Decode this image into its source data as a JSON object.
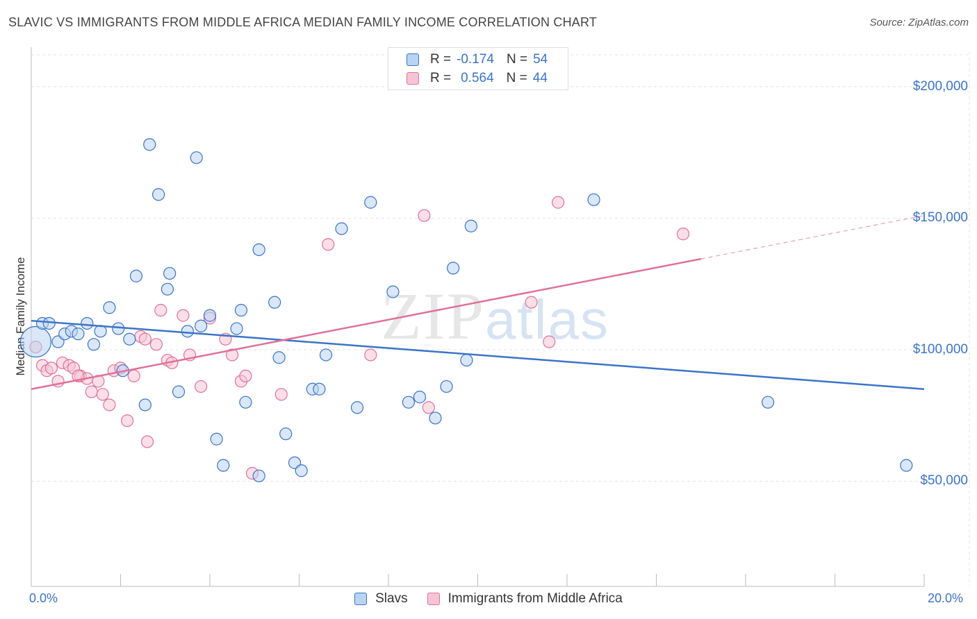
{
  "title": "SLAVIC VS IMMIGRANTS FROM MIDDLE AFRICA MEDIAN FAMILY INCOME CORRELATION CHART",
  "source": "Source: ZipAtlas.com",
  "watermark": {
    "zip": "ZIP",
    "atlas": "atlas"
  },
  "colors": {
    "slavs": "#3a73c9",
    "slavs_fill": "#b9d3f3",
    "immigrants": "#e0709a",
    "immigrants_fill": "#f7c4d4",
    "grid": "#e3e3e3",
    "axis_label": "#3a73c9"
  },
  "legend_top": {
    "rows": [
      {
        "r_label": "R =",
        "r_value": "-0.174",
        "n_label": "N =",
        "n_value": "54"
      },
      {
        "r_label": "R =",
        "r_value": "0.564",
        "n_label": "N =",
        "n_value": "44"
      }
    ]
  },
  "legend_bottom": [
    "Slavs",
    "Immigrants from Middle Africa"
  ],
  "chart_data": {
    "type": "scatter",
    "title": "SLAVIC VS IMMIGRANTS FROM MIDDLE AFRICA MEDIAN FAMILY INCOME CORRELATION CHART",
    "xlabel": "",
    "ylabel": "Median Family Income",
    "xlim": [
      0,
      20
    ],
    "ylim": [
      10000,
      215000
    ],
    "x_tick_labels": [
      "0.0%",
      "20.0%"
    ],
    "y_ticks": [
      50000,
      100000,
      150000,
      200000
    ],
    "y_tick_labels": [
      "$50,000",
      "$100,000",
      "$150,000",
      "$200,000"
    ],
    "grid": true,
    "legend_position": "bottom",
    "series": [
      {
        "name": "Slavs",
        "r": -0.174,
        "n": 54,
        "trend": {
          "x": [
            0,
            20
          ],
          "y": [
            111000,
            85000
          ]
        },
        "points": [
          {
            "x": 0.1,
            "y": 103000,
            "big": true
          },
          {
            "x": 0.25,
            "y": 110000
          },
          {
            "x": 0.4,
            "y": 110000
          },
          {
            "x": 0.6,
            "y": 103000
          },
          {
            "x": 0.75,
            "y": 106000
          },
          {
            "x": 0.9,
            "y": 107000
          },
          {
            "x": 1.05,
            "y": 106000
          },
          {
            "x": 1.25,
            "y": 110000
          },
          {
            "x": 1.4,
            "y": 102000
          },
          {
            "x": 1.55,
            "y": 107000
          },
          {
            "x": 1.75,
            "y": 116000
          },
          {
            "x": 1.95,
            "y": 108000
          },
          {
            "x": 2.05,
            "y": 92000
          },
          {
            "x": 2.2,
            "y": 104000
          },
          {
            "x": 2.35,
            "y": 128000
          },
          {
            "x": 2.55,
            "y": 79000
          },
          {
            "x": 2.65,
            "y": 178000
          },
          {
            "x": 2.85,
            "y": 159000
          },
          {
            "x": 3.05,
            "y": 123000
          },
          {
            "x": 3.1,
            "y": 129000
          },
          {
            "x": 3.3,
            "y": 84000
          },
          {
            "x": 3.5,
            "y": 107000
          },
          {
            "x": 3.7,
            "y": 173000
          },
          {
            "x": 3.8,
            "y": 109000
          },
          {
            "x": 4.0,
            "y": 113000
          },
          {
            "x": 4.15,
            "y": 66000
          },
          {
            "x": 4.3,
            "y": 56000
          },
          {
            "x": 4.6,
            "y": 108000
          },
          {
            "x": 4.7,
            "y": 115000
          },
          {
            "x": 4.8,
            "y": 80000
          },
          {
            "x": 5.1,
            "y": 138000
          },
          {
            "x": 5.1,
            "y": 52000
          },
          {
            "x": 5.45,
            "y": 118000
          },
          {
            "x": 5.55,
            "y": 97000
          },
          {
            "x": 5.7,
            "y": 68000
          },
          {
            "x": 5.9,
            "y": 57000
          },
          {
            "x": 6.05,
            "y": 54000
          },
          {
            "x": 6.3,
            "y": 85000
          },
          {
            "x": 6.45,
            "y": 85000
          },
          {
            "x": 6.6,
            "y": 98000
          },
          {
            "x": 6.95,
            "y": 146000
          },
          {
            "x": 7.3,
            "y": 78000
          },
          {
            "x": 7.6,
            "y": 156000
          },
          {
            "x": 8.1,
            "y": 122000
          },
          {
            "x": 8.45,
            "y": 80000
          },
          {
            "x": 8.7,
            "y": 82000
          },
          {
            "x": 9.05,
            "y": 74000
          },
          {
            "x": 9.3,
            "y": 86000
          },
          {
            "x": 9.45,
            "y": 131000
          },
          {
            "x": 9.75,
            "y": 96000
          },
          {
            "x": 9.85,
            "y": 147000
          },
          {
            "x": 12.6,
            "y": 157000
          },
          {
            "x": 16.5,
            "y": 80000
          },
          {
            "x": 19.6,
            "y": 56000
          }
        ]
      },
      {
        "name": "Immigrants from Middle Africa",
        "r": 0.564,
        "n": 44,
        "trend": {
          "x": [
            0,
            15
          ],
          "y": [
            85000,
            134500
          ],
          "x_dash_end": 20,
          "y_dash_end": 151000
        },
        "points": [
          {
            "x": 0.1,
            "y": 101000
          },
          {
            "x": 0.25,
            "y": 94000
          },
          {
            "x": 0.35,
            "y": 92000
          },
          {
            "x": 0.45,
            "y": 93000
          },
          {
            "x": 0.6,
            "y": 88000
          },
          {
            "x": 0.7,
            "y": 95000
          },
          {
            "x": 0.85,
            "y": 94000
          },
          {
            "x": 0.95,
            "y": 93000
          },
          {
            "x": 1.1,
            "y": 90000
          },
          {
            "x": 1.25,
            "y": 89000
          },
          {
            "x": 1.35,
            "y": 84000
          },
          {
            "x": 1.5,
            "y": 88000
          },
          {
            "x": 1.6,
            "y": 83000
          },
          {
            "x": 1.75,
            "y": 79000
          },
          {
            "x": 1.85,
            "y": 92000
          },
          {
            "x": 2.0,
            "y": 93000
          },
          {
            "x": 2.15,
            "y": 73000
          },
          {
            "x": 2.3,
            "y": 90000
          },
          {
            "x": 2.45,
            "y": 105000
          },
          {
            "x": 2.55,
            "y": 104000
          },
          {
            "x": 2.6,
            "y": 65000
          },
          {
            "x": 2.8,
            "y": 102000
          },
          {
            "x": 2.9,
            "y": 115000
          },
          {
            "x": 3.05,
            "y": 96000
          },
          {
            "x": 3.15,
            "y": 95000
          },
          {
            "x": 3.4,
            "y": 113000
          },
          {
            "x": 3.55,
            "y": 98000
          },
          {
            "x": 3.8,
            "y": 86000
          },
          {
            "x": 4.0,
            "y": 112000
          },
          {
            "x": 4.35,
            "y": 104000
          },
          {
            "x": 4.5,
            "y": 98000
          },
          {
            "x": 4.7,
            "y": 88000
          },
          {
            "x": 4.8,
            "y": 90000
          },
          {
            "x": 4.95,
            "y": 53000
          },
          {
            "x": 5.6,
            "y": 83000
          },
          {
            "x": 6.65,
            "y": 140000
          },
          {
            "x": 7.6,
            "y": 98000
          },
          {
            "x": 8.8,
            "y": 151000
          },
          {
            "x": 8.9,
            "y": 78000
          },
          {
            "x": 11.2,
            "y": 118000
          },
          {
            "x": 11.6,
            "y": 103000
          },
          {
            "x": 11.8,
            "y": 156000
          },
          {
            "x": 14.6,
            "y": 144000
          },
          {
            "x": 1.05,
            "y": 90000
          }
        ]
      }
    ]
  }
}
